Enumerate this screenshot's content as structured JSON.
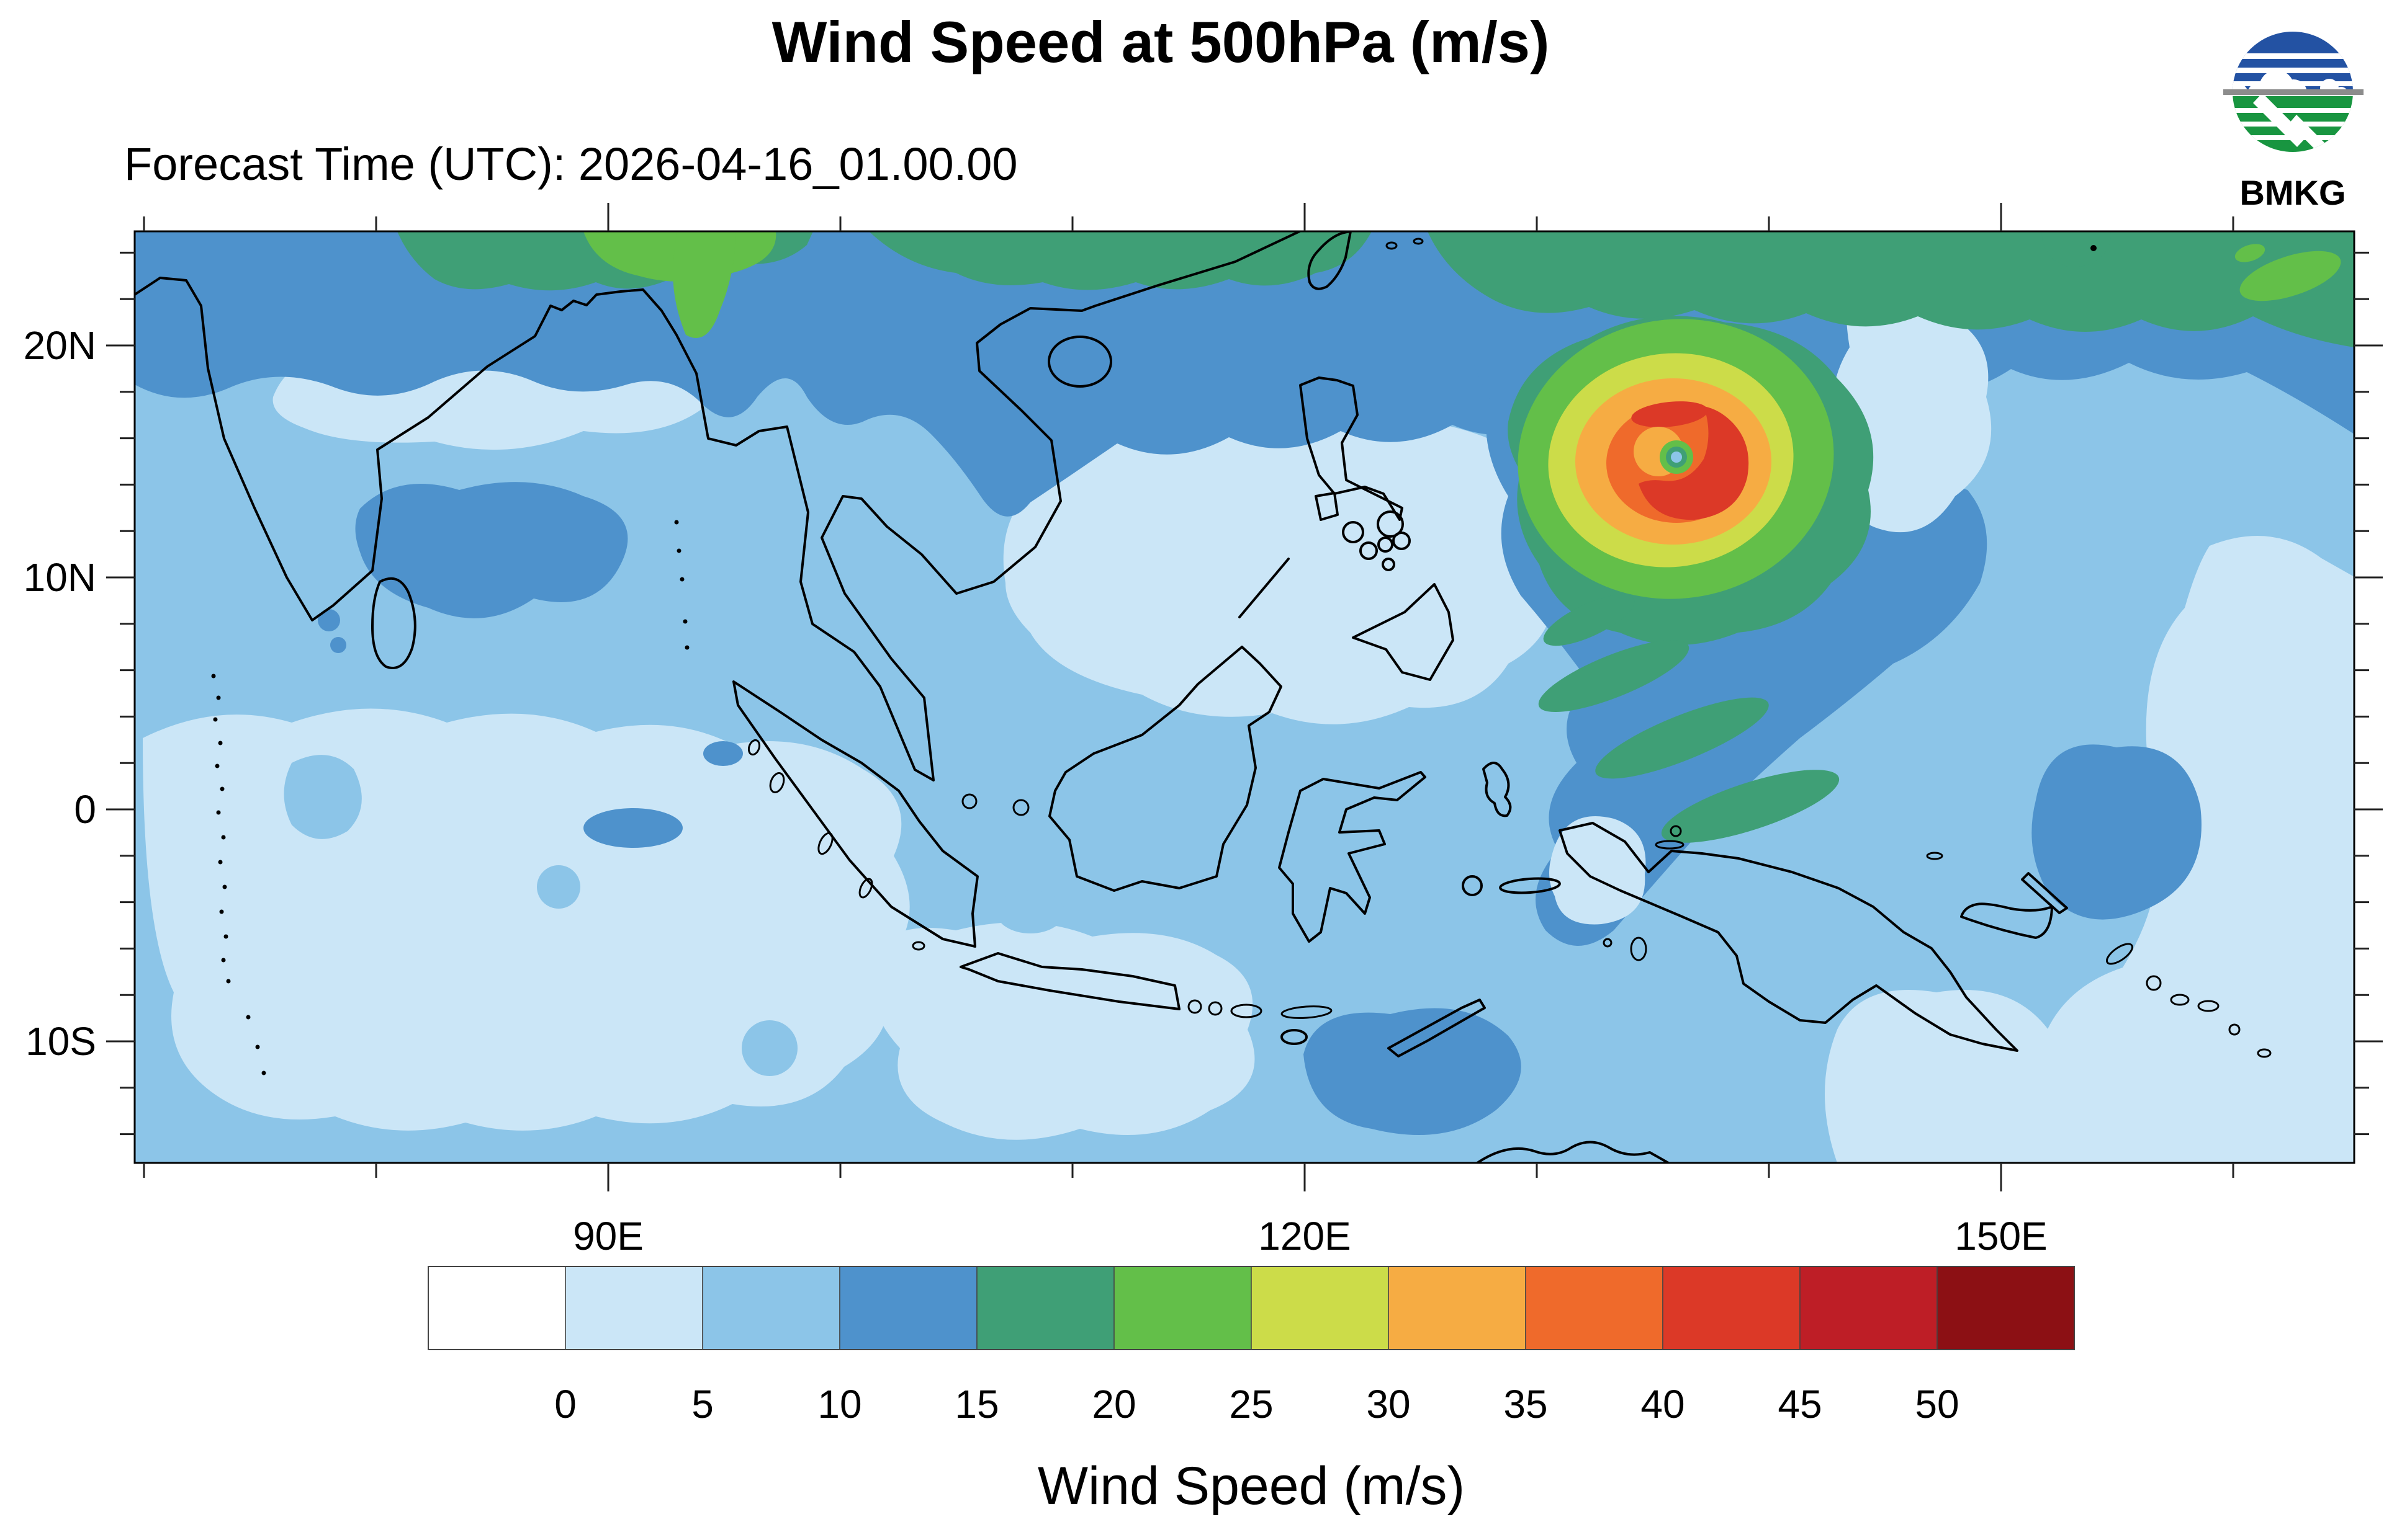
{
  "header": {
    "title": "Wind Speed at 500hPa (m/s)",
    "forecast_time": "Forecast Time (UTC): 2026-04-16_01.00.00",
    "logo_text": "BMKG"
  },
  "colorbar": {
    "title": "Wind Speed (m/s)",
    "tick_labels": [
      "0",
      "5",
      "10",
      "15",
      "20",
      "25",
      "30",
      "35",
      "40",
      "45",
      "50"
    ],
    "colors": [
      "#ffffff",
      "#cbe6f7",
      "#8cc5e8",
      "#4e92cc",
      "#3f9f76",
      "#63bf49",
      "#ccdc49",
      "#f6ac43",
      "#ef6a2b",
      "#dc3927",
      "#be1e26",
      "#8c1014"
    ]
  },
  "axes": {
    "lat_major": [
      {
        "value": 20,
        "label": "20N"
      },
      {
        "value": 10,
        "label": "10N"
      },
      {
        "value": 0,
        "label": "0"
      },
      {
        "value": -10,
        "label": "10S"
      }
    ],
    "lat_minor": [
      24,
      22,
      18,
      16,
      14,
      12,
      8,
      6,
      4,
      2,
      -2,
      -4,
      -6,
      -8,
      -12,
      -14
    ],
    "lon_major": [
      {
        "value": 90,
        "label": "90E"
      },
      {
        "value": 120,
        "label": "120E"
      },
      {
        "value": 150,
        "label": "150E"
      }
    ],
    "lon_minor": [
      70,
      80,
      100,
      110,
      130,
      140,
      160
    ]
  },
  "chart_data": {
    "type": "heatmap",
    "subtype": "filled-contour-geographic-map",
    "title": "Wind Speed at 500hPa (m/s)",
    "forecast_time_utc": "2026-04-16_01.00.00",
    "units": "m/s",
    "source_logo": "BMKG",
    "levels_mps": [
      0,
      5,
      10,
      15,
      20,
      25,
      30,
      35,
      40,
      45,
      50
    ],
    "palette": [
      "#ffffff",
      "#cbe6f7",
      "#8cc5e8",
      "#4e92cc",
      "#3f9f76",
      "#63bf49",
      "#ccdc49",
      "#f6ac43",
      "#ef6a2b",
      "#dc3927",
      "#be1e26",
      "#8c1014"
    ],
    "lon_range_deg_east": [
      70,
      165
    ],
    "lat_range_deg": [
      -15.2,
      24.9
    ],
    "lon_tick_labels": [
      "90E",
      "120E",
      "150E"
    ],
    "lat_tick_labels": [
      "20N",
      "10N",
      "0",
      "10S"
    ],
    "legend_position": "bottom",
    "grid": false,
    "features": [
      {
        "name": "tropical-cyclone",
        "lon_deg_e": 136,
        "lat_deg_n": 15.3,
        "max_band_mps": "40-45",
        "eye_band_mps": "5-10",
        "description": "concentric wind maxima east of the Philippines with calm eye"
      },
      {
        "name": "northern-jet-band",
        "lat_deg_n": "21-25",
        "band_mps": "15-25",
        "description": "strong westerly band along the northern map edge with 20-25 m/s cores"
      },
      {
        "name": "background-field",
        "band_mps": "0-15",
        "description": "light winds 0-10 m/s over most of the Maritime Continent and Indian Ocean"
      }
    ]
  }
}
